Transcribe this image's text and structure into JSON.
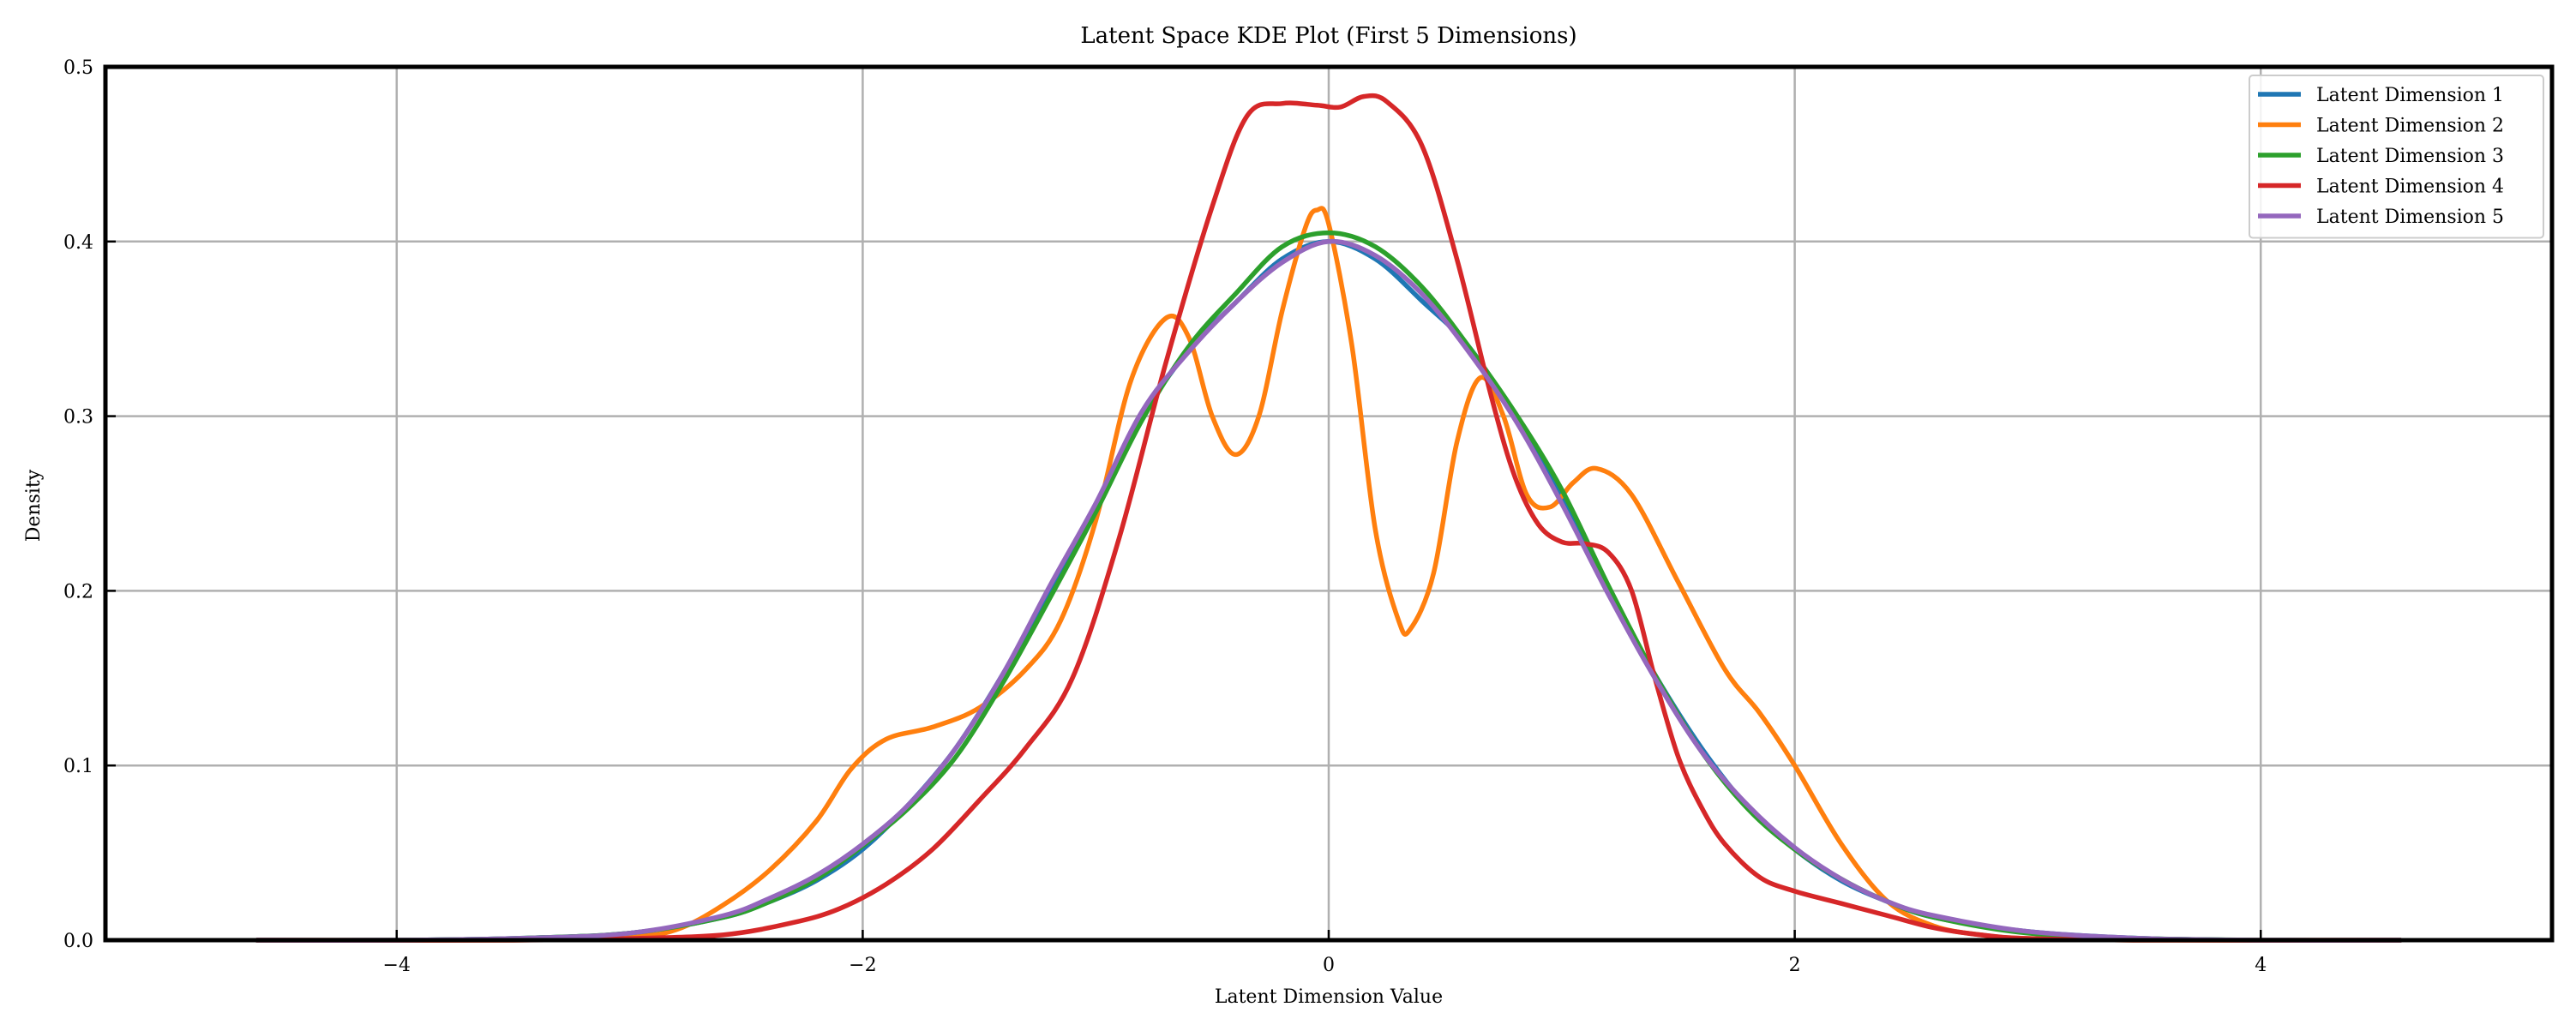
{
  "chart_data": {
    "type": "line",
    "title": "Latent Space KDE Plot (First 5 Dimensions)",
    "xlabel": "Latent Dimension Value",
    "ylabel": "Density",
    "xlim": [
      -5.25,
      5.25
    ],
    "ylim": [
      0,
      0.5
    ],
    "xticks": [
      -4,
      -2,
      0,
      2,
      4
    ],
    "xtick_labels": [
      "−4",
      "−2",
      "0",
      "2",
      "4"
    ],
    "yticks": [
      0,
      0.1,
      0.2,
      0.3,
      0.4,
      0.5
    ],
    "ytick_labels": [
      "0.0",
      "0.1",
      "0.2",
      "0.3",
      "0.4",
      "0.5"
    ],
    "grid": true,
    "legend_position": "top-right",
    "series": [
      {
        "name": "Latent Dimension 1",
        "color": "#1f77b4",
        "points": [
          [
            -4.6,
            0.0
          ],
          [
            -4.0,
            0.0
          ],
          [
            -3.5,
            0.001
          ],
          [
            -3.0,
            0.004
          ],
          [
            -2.6,
            0.013
          ],
          [
            -2.4,
            0.022
          ],
          [
            -2.2,
            0.034
          ],
          [
            -2.0,
            0.052
          ],
          [
            -1.8,
            0.078
          ],
          [
            -1.6,
            0.11
          ],
          [
            -1.4,
            0.152
          ],
          [
            -1.2,
            0.2
          ],
          [
            -1.0,
            0.248
          ],
          [
            -0.8,
            0.3
          ],
          [
            -0.6,
            0.338
          ],
          [
            -0.4,
            0.365
          ],
          [
            -0.2,
            0.39
          ],
          [
            0.0,
            0.4
          ],
          [
            0.2,
            0.39
          ],
          [
            0.4,
            0.366
          ],
          [
            0.6,
            0.34
          ],
          [
            0.8,
            0.3
          ],
          [
            1.0,
            0.255
          ],
          [
            1.2,
            0.2
          ],
          [
            1.4,
            0.152
          ],
          [
            1.6,
            0.11
          ],
          [
            1.8,
            0.076
          ],
          [
            2.0,
            0.052
          ],
          [
            2.2,
            0.034
          ],
          [
            2.4,
            0.022
          ],
          [
            2.6,
            0.013
          ],
          [
            3.0,
            0.005
          ],
          [
            3.5,
            0.001
          ],
          [
            4.0,
            0.0
          ],
          [
            4.6,
            0.0
          ]
        ]
      },
      {
        "name": "Latent Dimension 2",
        "color": "#ff7f0e",
        "points": [
          [
            -4.6,
            0.0
          ],
          [
            -3.5,
            0.0
          ],
          [
            -3.0,
            0.002
          ],
          [
            -2.8,
            0.006
          ],
          [
            -2.6,
            0.02
          ],
          [
            -2.4,
            0.04
          ],
          [
            -2.2,
            0.068
          ],
          [
            -2.05,
            0.098
          ],
          [
            -1.9,
            0.115
          ],
          [
            -1.7,
            0.122
          ],
          [
            -1.5,
            0.133
          ],
          [
            -1.3,
            0.155
          ],
          [
            -1.15,
            0.183
          ],
          [
            -1.0,
            0.24
          ],
          [
            -0.85,
            0.32
          ],
          [
            -0.7,
            0.356
          ],
          [
            -0.6,
            0.345
          ],
          [
            -0.5,
            0.3
          ],
          [
            -0.4,
            0.278
          ],
          [
            -0.3,
            0.3
          ],
          [
            -0.2,
            0.36
          ],
          [
            -0.1,
            0.408
          ],
          [
            -0.05,
            0.418
          ],
          [
            0.0,
            0.41
          ],
          [
            0.1,
            0.34
          ],
          [
            0.2,
            0.235
          ],
          [
            0.3,
            0.183
          ],
          [
            0.35,
            0.178
          ],
          [
            0.45,
            0.21
          ],
          [
            0.55,
            0.285
          ],
          [
            0.65,
            0.322
          ],
          [
            0.75,
            0.3
          ],
          [
            0.85,
            0.255
          ],
          [
            0.95,
            0.248
          ],
          [
            1.05,
            0.262
          ],
          [
            1.15,
            0.27
          ],
          [
            1.3,
            0.255
          ],
          [
            1.5,
            0.205
          ],
          [
            1.7,
            0.155
          ],
          [
            1.85,
            0.13
          ],
          [
            2.0,
            0.1
          ],
          [
            2.2,
            0.055
          ],
          [
            2.4,
            0.022
          ],
          [
            2.6,
            0.008
          ],
          [
            2.8,
            0.003
          ],
          [
            3.0,
            0.001
          ],
          [
            3.5,
            0.0
          ],
          [
            4.6,
            0.0
          ]
        ]
      },
      {
        "name": "Latent Dimension 3",
        "color": "#2ca02c",
        "points": [
          [
            -4.6,
            0.0
          ],
          [
            -4.0,
            0.0
          ],
          [
            -3.5,
            0.001
          ],
          [
            -3.0,
            0.004
          ],
          [
            -2.6,
            0.013
          ],
          [
            -2.4,
            0.022
          ],
          [
            -2.2,
            0.035
          ],
          [
            -2.0,
            0.054
          ],
          [
            -1.8,
            0.076
          ],
          [
            -1.6,
            0.105
          ],
          [
            -1.4,
            0.147
          ],
          [
            -1.2,
            0.195
          ],
          [
            -1.0,
            0.245
          ],
          [
            -0.8,
            0.298
          ],
          [
            -0.6,
            0.34
          ],
          [
            -0.4,
            0.37
          ],
          [
            -0.2,
            0.397
          ],
          [
            0.0,
            0.405
          ],
          [
            0.2,
            0.397
          ],
          [
            0.4,
            0.374
          ],
          [
            0.6,
            0.34
          ],
          [
            0.8,
            0.302
          ],
          [
            1.0,
            0.258
          ],
          [
            1.2,
            0.203
          ],
          [
            1.4,
            0.152
          ],
          [
            1.6,
            0.108
          ],
          [
            1.8,
            0.075
          ],
          [
            2.0,
            0.052
          ],
          [
            2.2,
            0.035
          ],
          [
            2.4,
            0.022
          ],
          [
            2.6,
            0.013
          ],
          [
            3.0,
            0.004
          ],
          [
            3.5,
            0.001
          ],
          [
            4.0,
            0.0
          ],
          [
            4.6,
            0.0
          ]
        ]
      },
      {
        "name": "Latent Dimension 4",
        "color": "#d62728",
        "points": [
          [
            -4.6,
            0.0
          ],
          [
            -3.5,
            0.0
          ],
          [
            -3.0,
            0.001
          ],
          [
            -2.6,
            0.003
          ],
          [
            -2.3,
            0.01
          ],
          [
            -2.1,
            0.018
          ],
          [
            -1.9,
            0.032
          ],
          [
            -1.7,
            0.052
          ],
          [
            -1.5,
            0.08
          ],
          [
            -1.3,
            0.11
          ],
          [
            -1.1,
            0.15
          ],
          [
            -0.9,
            0.23
          ],
          [
            -0.7,
            0.33
          ],
          [
            -0.5,
            0.42
          ],
          [
            -0.35,
            0.472
          ],
          [
            -0.2,
            0.479
          ],
          [
            -0.05,
            0.478
          ],
          [
            0.05,
            0.477
          ],
          [
            0.15,
            0.483
          ],
          [
            0.25,
            0.48
          ],
          [
            0.4,
            0.455
          ],
          [
            0.55,
            0.39
          ],
          [
            0.7,
            0.31
          ],
          [
            0.8,
            0.265
          ],
          [
            0.9,
            0.238
          ],
          [
            1.0,
            0.228
          ],
          [
            1.1,
            0.227
          ],
          [
            1.2,
            0.222
          ],
          [
            1.3,
            0.2
          ],
          [
            1.4,
            0.15
          ],
          [
            1.5,
            0.105
          ],
          [
            1.6,
            0.076
          ],
          [
            1.7,
            0.055
          ],
          [
            1.85,
            0.036
          ],
          [
            2.0,
            0.028
          ],
          [
            2.2,
            0.021
          ],
          [
            2.4,
            0.014
          ],
          [
            2.6,
            0.007
          ],
          [
            2.8,
            0.003
          ],
          [
            3.0,
            0.001
          ],
          [
            3.5,
            0.0
          ],
          [
            4.6,
            0.0
          ]
        ]
      },
      {
        "name": "Latent Dimension 5",
        "color": "#9467bd",
        "points": [
          [
            -4.6,
            0.0
          ],
          [
            -4.0,
            0.0
          ],
          [
            -3.5,
            0.001
          ],
          [
            -3.0,
            0.004
          ],
          [
            -2.6,
            0.014
          ],
          [
            -2.4,
            0.024
          ],
          [
            -2.2,
            0.037
          ],
          [
            -2.0,
            0.055
          ],
          [
            -1.8,
            0.078
          ],
          [
            -1.6,
            0.11
          ],
          [
            -1.4,
            0.152
          ],
          [
            -1.2,
            0.202
          ],
          [
            -1.0,
            0.25
          ],
          [
            -0.8,
            0.303
          ],
          [
            -0.6,
            0.337
          ],
          [
            -0.4,
            0.365
          ],
          [
            -0.2,
            0.388
          ],
          [
            0.0,
            0.4
          ],
          [
            0.2,
            0.392
          ],
          [
            0.4,
            0.37
          ],
          [
            0.6,
            0.337
          ],
          [
            0.8,
            0.298
          ],
          [
            1.0,
            0.25
          ],
          [
            1.2,
            0.198
          ],
          [
            1.4,
            0.15
          ],
          [
            1.6,
            0.108
          ],
          [
            1.8,
            0.077
          ],
          [
            2.0,
            0.053
          ],
          [
            2.2,
            0.035
          ],
          [
            2.4,
            0.022
          ],
          [
            2.6,
            0.014
          ],
          [
            3.0,
            0.005
          ],
          [
            3.5,
            0.001
          ],
          [
            4.0,
            0.0
          ],
          [
            4.6,
            0.0
          ]
        ]
      }
    ]
  }
}
